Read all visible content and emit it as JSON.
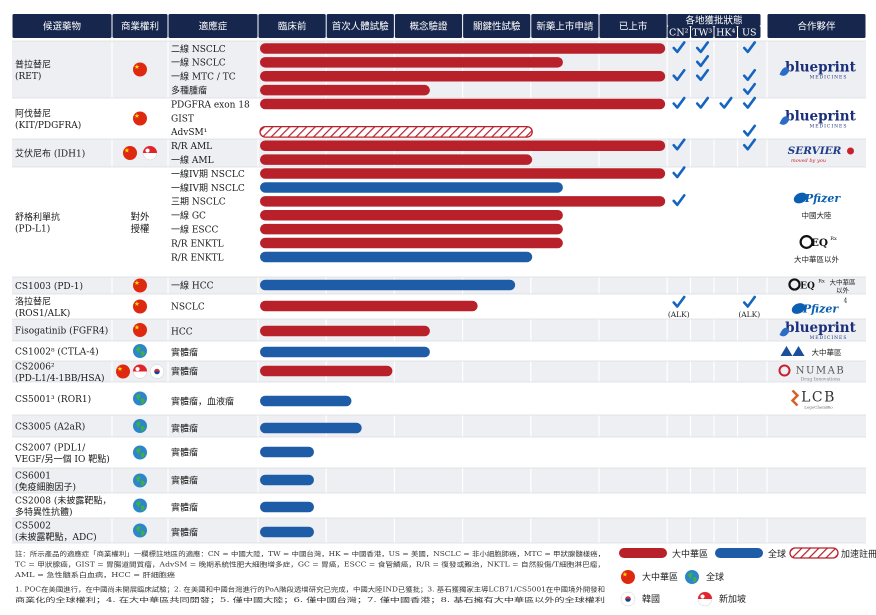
{
  "colors": {
    "header": "#17264d",
    "china_bar": "#b8202a",
    "global_bar": "#1f5ca8",
    "check": "#1565c0",
    "row_shade": "#eeeff3",
    "flag_red": "#de2910",
    "flag_yellow": "#ffde00"
  },
  "headers": {
    "drug": "候選藥物",
    "rights": "商業權利",
    "indication": "適應症",
    "stages": [
      "臨床前",
      "首次人體試驗",
      "概念驗證",
      "關鍵性試驗",
      "新藥上市申請",
      "已上市"
    ],
    "approval_group": "各地獲批狀態",
    "regions": [
      "CN²",
      "TW³",
      "HK⁴",
      "US"
    ],
    "partner": "合作夥伴"
  },
  "chart_data": {
    "type": "table",
    "title": "Pipeline",
    "stage_scale": "0 = start of 臨床前 column, 6 = end of 已上市 column",
    "groups": [
      {
        "id": "pralsetinib",
        "name": "普拉替尼",
        "sub": "(RET)",
        "rights": "cn",
        "shade": true,
        "rows": [
          0,
          1,
          2,
          3
        ],
        "partner": "blueprint",
        "partner_rows": [
          0,
          3
        ]
      },
      {
        "id": "avapritinib",
        "name": "阿伐替尼",
        "sub": "(KIT/PDGFRA)",
        "rights": "cn",
        "shade": false,
        "rows": [
          4,
          5,
          6
        ],
        "partner": "blueprint",
        "partner_rows": [
          4,
          6
        ]
      },
      {
        "id": "ivosidenib",
        "name": "艾伏尼布 (IDH1)",
        "sub": "",
        "rights": "cn_sg",
        "shade": true,
        "rows": [
          7,
          8
        ],
        "partner": "servier",
        "partner_rows": [
          7,
          8
        ]
      },
      {
        "id": "sugemalimab",
        "name": "舒格利單抗",
        "sub": "(PD-L1)",
        "rights": "text",
        "shade": false,
        "rows": [
          9,
          10,
          11,
          12,
          13,
          14,
          15
        ],
        "partner": "pfizer_eq",
        "partner_rows": [
          9,
          15
        ]
      },
      {
        "id": "cs1003",
        "name": "CS1003 (PD-1)",
        "sub": "",
        "rights": "cn",
        "shade": true,
        "rows": [
          16
        ],
        "partner": "eq",
        "partner_rows": [
          16,
          16
        ]
      },
      {
        "id": "lorlatinib",
        "name": "洛拉替尼",
        "sub": "(ROS1/ALK)",
        "rights": "cn",
        "shade": false,
        "rows": [
          17
        ],
        "partner": "pfizer",
        "partner_rows": [
          17,
          17
        ]
      },
      {
        "id": "fisogatinib",
        "name": "Fisogatinib (FGFR4)",
        "sub": "",
        "rights": "cn",
        "shade": true,
        "rows": [
          18
        ],
        "partner": "blueprint",
        "partner_rows": [
          18,
          18
        ]
      },
      {
        "id": "cs1002",
        "name": "CS1002⁸ (CTLA-4)",
        "sub": "",
        "rights": "global",
        "shade": false,
        "rows": [
          19
        ],
        "partner": "mab",
        "partner_rows": [
          19,
          19
        ]
      },
      {
        "id": "cs2006",
        "name": "CS2006²",
        "sub": "(PD-L1/4-1BB/HSA)",
        "rights": "cn_sg_kr",
        "shade": true,
        "rows": [
          20
        ],
        "partner": "numab",
        "partner_rows": [
          20,
          20
        ]
      },
      {
        "id": "cs5001",
        "name": "CS5001³ (ROR1)",
        "sub": "",
        "rights": "global",
        "shade": false,
        "rows": [
          21
        ],
        "partner": "lcb",
        "partner_rows": [
          21,
          21
        ]
      },
      {
        "id": "cs3005",
        "name": "CS3005 (A2aR)",
        "sub": "",
        "rights": "global",
        "shade": true,
        "rows": [
          22
        ],
        "partner": "",
        "partner_rows": [
          22,
          22
        ]
      },
      {
        "id": "cs2007",
        "name": "CS2007 (PDL1/",
        "sub": "VEGF/另一個 IO 靶點)",
        "rights": "global",
        "shade": false,
        "rows": [
          23
        ],
        "partner": "",
        "partner_rows": [
          23,
          23
        ]
      },
      {
        "id": "cs6001",
        "name": "CS6001",
        "sub": "(免疫細胞因子)",
        "rights": "global",
        "shade": true,
        "rows": [
          24
        ],
        "partner": "",
        "partner_rows": [
          24,
          24
        ]
      },
      {
        "id": "cs2008",
        "name": "CS2008 (未披露靶點，",
        "sub": "多特異性抗體)",
        "rights": "global",
        "shade": false,
        "rows": [
          25
        ],
        "partner": "",
        "partner_rows": [
          25,
          25
        ]
      },
      {
        "id": "cs5002",
        "name": "CS5002",
        "sub": "(未披露靶點，ADC)",
        "rights": "global",
        "shade": true,
        "rows": [
          26
        ],
        "partner": "",
        "partner_rows": [
          26,
          26
        ]
      }
    ],
    "rows": [
      {
        "indication": "二線 NSCLC",
        "series": "大中華區",
        "stage": 6.0,
        "approvals": [
          1,
          1,
          0,
          1
        ],
        "alk": false
      },
      {
        "indication": "一線 NSCLC",
        "series": "大中華區",
        "stage": 4.5,
        "approvals": [
          0,
          1,
          0,
          0
        ],
        "alk": false
      },
      {
        "indication": "一線 MTC / TC",
        "series": "大中華區",
        "stage": 6.0,
        "approvals": [
          1,
          1,
          0,
          1
        ],
        "alk": false
      },
      {
        "indication": "多種腫瘤",
        "series": "大中華區",
        "stage": 2.55,
        "approvals": [
          0,
          0,
          0,
          1
        ],
        "alk": false
      },
      {
        "indication": "PDGFRA exon 18",
        "series": "大中華區",
        "stage": 6.0,
        "approvals": [
          1,
          1,
          1,
          1
        ],
        "alk": false
      },
      {
        "indication": "GIST",
        "series": "",
        "stage": 0,
        "approvals": [
          0,
          0,
          0,
          0
        ],
        "alk": false
      },
      {
        "indication": "AdvSM¹",
        "series": "加速註冊",
        "stage": 4.05,
        "approvals": [
          0,
          0,
          0,
          1
        ],
        "alk": false
      },
      {
        "indication": "R/R AML",
        "series": "大中華區",
        "stage": 6.0,
        "approvals": [
          1,
          0,
          0,
          1
        ],
        "alk": false
      },
      {
        "indication": "一線 AML",
        "series": "大中華區",
        "stage": 4.05,
        "approvals": [
          0,
          0,
          0,
          0
        ],
        "alk": false
      },
      {
        "indication": "一線IV期 NSCLC",
        "series": "大中華區",
        "stage": 6.0,
        "approvals": [
          1,
          0,
          0,
          0
        ],
        "alk": false
      },
      {
        "indication": "一線IV期 NSCLC",
        "series": "全球",
        "stage": 4.5,
        "approvals": [
          0,
          0,
          0,
          0
        ],
        "alk": false
      },
      {
        "indication": "三期 NSCLC",
        "series": "大中華區",
        "stage": 6.0,
        "approvals": [
          1,
          0,
          0,
          0
        ],
        "alk": false
      },
      {
        "indication": "一線 GC",
        "series": "大中華區",
        "stage": 4.5,
        "approvals": [
          0,
          0,
          0,
          0
        ],
        "alk": false
      },
      {
        "indication": "一線 ESCC",
        "series": "大中華區",
        "stage": 4.5,
        "approvals": [
          0,
          0,
          0,
          0
        ],
        "alk": false
      },
      {
        "indication": "R/R ENKTL",
        "series": "大中華區",
        "stage": 4.5,
        "approvals": [
          0,
          0,
          0,
          0
        ],
        "alk": false
      },
      {
        "indication": "R/R ENKTL",
        "series": "全球",
        "stage": 4.05,
        "approvals": [
          0,
          0,
          0,
          0
        ],
        "alk": false
      },
      {
        "indication": "一線 HCC",
        "series": "全球",
        "stage": 3.8,
        "approvals": [
          0,
          0,
          0,
          0
        ],
        "alk": false
      },
      {
        "indication": "NSCLC",
        "series": "大中華區",
        "stage": 3.25,
        "approvals": [
          1,
          0,
          0,
          1
        ],
        "alk": true
      },
      {
        "indication": "HCC",
        "series": "大中華區",
        "stage": 2.55,
        "approvals": [
          0,
          0,
          0,
          0
        ],
        "alk": false
      },
      {
        "indication": "實體瘤",
        "series": "全球",
        "stage": 2.55,
        "approvals": [
          0,
          0,
          0,
          0
        ],
        "alk": false
      },
      {
        "indication": "實體瘤",
        "series": "大中華區",
        "stage": 2.0,
        "approvals": [
          0,
          0,
          0,
          0
        ],
        "alk": false
      },
      {
        "indication": "實體瘤，血液瘤",
        "series": "全球",
        "stage": 1.4,
        "approvals": [
          0,
          0,
          0,
          0
        ],
        "alk": false
      },
      {
        "indication": "實體瘤",
        "series": "全球",
        "stage": 1.55,
        "approvals": [
          0,
          0,
          0,
          0
        ],
        "alk": false
      },
      {
        "indication": "實體瘤",
        "series": "全球",
        "stage": 0.85,
        "approvals": [
          0,
          0,
          0,
          0
        ],
        "alk": false
      },
      {
        "indication": "實體瘤",
        "series": "全球",
        "stage": 0.85,
        "approvals": [
          0,
          0,
          0,
          0
        ],
        "alk": false
      },
      {
        "indication": "實體瘤",
        "series": "全球",
        "stage": 0.85,
        "approvals": [
          0,
          0,
          0,
          0
        ],
        "alk": false
      },
      {
        "indication": "實體瘤",
        "series": "全球",
        "stage": 0.85,
        "approvals": [
          0,
          0,
          0,
          0
        ],
        "alk": false
      }
    ]
  },
  "rights_text": [
    "對外",
    "授權"
  ],
  "alk_label": "(ALK)",
  "partners": {
    "blueprint": "blueprint",
    "blueprint_sub": "MEDICINES",
    "servier": "SERVIER",
    "servier_sub": "moved by you",
    "pfizer": "Pfizer",
    "pfizer_sup": "4",
    "pfizer_china": "中國大陸",
    "eq": "EQ",
    "eq_sup": "Rx",
    "eq_greater": "大中華區以外",
    "eq_side1": "大中華區",
    "eq_side2": "以外",
    "mab": "大中華區",
    "numab": "NUMAB",
    "numab_sub": "Drug Innovations",
    "lcb": "LCB",
    "lcb_sub": "LegoChemBio"
  },
  "legend": {
    "china": "大中華區",
    "global": "全球",
    "accelerated": "加速註冊",
    "flag_china": "大中華區",
    "flag_global": "全球",
    "korea": "韓國",
    "singapore": "新加坡"
  },
  "notes": [
    "註：所示產品的適應症「商業權利」一欄標註地區的適應：CN = 中國大陸，TW = 中國台灣，HK = 中國香港，US = 美國，NSCLC = 非小細胞肺癌，MTC = 甲狀腺髓樣癌，",
    "TC = 甲狀腺癌，GIST = 胃腸道間質瘤，AdvSM = 晚期系統性肥大細胞增多症，GC = 胃癌，ESCC = 食管鱗癌，R/R = 復發或難治，NKTL = 自然殺傷/T細胞淋巴瘤，",
    "AML = 急性髓系白血病，HCC = 肝細胞癌",
    "1. POC在美國進行，在中國尚未開展臨床試驗；2. 在美國和中國台灣進行的PoA階段透增研究已完成，中國大陸IND已獲批；3. 基石獲獨家主導LCB71/CS5001在中國境外開發和",
    "商業化的全球權利；4. 在大中華區共同開發；5. 僅中國大陸；6. 僅中國台灣；7. 僅中國香港；8. 基石擁有大中華區以外的全球權利"
  ]
}
